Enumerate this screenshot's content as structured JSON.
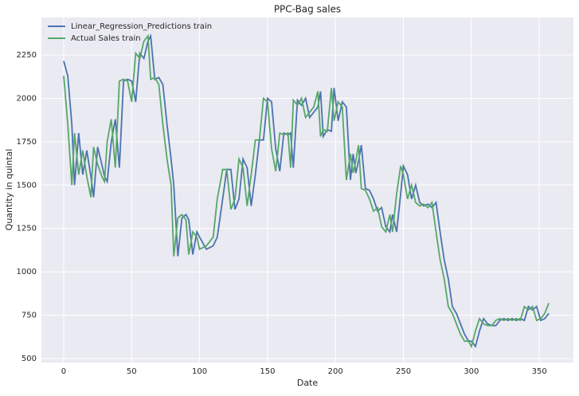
{
  "chart_data": {
    "type": "line",
    "title": "PPC-Bag sales",
    "xlabel": "Date",
    "ylabel": "Quantity in quintal",
    "x": [
      0,
      3,
      6,
      8,
      11,
      14,
      17,
      20,
      22,
      25,
      28,
      30,
      32,
      35,
      38,
      41,
      44,
      47,
      50,
      53,
      56,
      59,
      62,
      64,
      67,
      70,
      73,
      76,
      79,
      81,
      84,
      87,
      90,
      92,
      95,
      98,
      100,
      105,
      110,
      113,
      117,
      120,
      123,
      126,
      129,
      132,
      135,
      138,
      141,
      144,
      147,
      150,
      153,
      156,
      159,
      162,
      165,
      167,
      169,
      172,
      175,
      178,
      181,
      184,
      187,
      189,
      191,
      194,
      197,
      199,
      202,
      205,
      208,
      211,
      213,
      215,
      217,
      219,
      222,
      225,
      228,
      231,
      234,
      237,
      240,
      242,
      245,
      248,
      250,
      253,
      256,
      259,
      262,
      265,
      268,
      271,
      274,
      277,
      280,
      283,
      286,
      289,
      292,
      295,
      298,
      300,
      303,
      306,
      309,
      312,
      315,
      318,
      321,
      324,
      327,
      330,
      333,
      336,
      339,
      342,
      345,
      348,
      351,
      354,
      357
    ],
    "series": [
      {
        "name": "Linear_Regression_Predictions train",
        "color": "#4c72b0",
        "values": [
          2215,
          2130,
          1850,
          1500,
          1800,
          1560,
          1700,
          1550,
          1430,
          1720,
          1620,
          1550,
          1520,
          1750,
          1880,
          1600,
          2100,
          2110,
          2100,
          1980,
          2260,
          2230,
          2330,
          2360,
          2110,
          2120,
          2080,
          1850,
          1650,
          1500,
          1090,
          1310,
          1330,
          1300,
          1100,
          1230,
          1200,
          1130,
          1150,
          1200,
          1420,
          1590,
          1590,
          1360,
          1420,
          1650,
          1600,
          1380,
          1560,
          1760,
          1760,
          2000,
          1980,
          1710,
          1580,
          1800,
          1790,
          1800,
          1600,
          1990,
          1960,
          2000,
          1890,
          1920,
          1950,
          2040,
          1780,
          1820,
          1810,
          2060,
          1870,
          1980,
          1950,
          1530,
          1680,
          1570,
          1640,
          1730,
          1480,
          1470,
          1420,
          1350,
          1370,
          1260,
          1230,
          1330,
          1230,
          1450,
          1610,
          1560,
          1420,
          1500,
          1400,
          1380,
          1390,
          1370,
          1400,
          1230,
          1070,
          960,
          800,
          760,
          700,
          640,
          600,
          600,
          570,
          660,
          730,
          700,
          690,
          690,
          720,
          730,
          720,
          730,
          720,
          730,
          720,
          800,
          780,
          800,
          720,
          730,
          760
        ]
      },
      {
        "name": "Actual Sales train",
        "color": "#55a868",
        "values": [
          2130,
          1850,
          1500,
          1800,
          1560,
          1700,
          1550,
          1430,
          1720,
          1620,
          1550,
          1520,
          1750,
          1880,
          1600,
          2100,
          2110,
          2100,
          1980,
          2260,
          2230,
          2330,
          2360,
          2110,
          2120,
          2080,
          1850,
          1650,
          1500,
          1090,
          1310,
          1330,
          1300,
          1100,
          1230,
          1200,
          1130,
          1150,
          1200,
          1420,
          1590,
          1590,
          1360,
          1420,
          1650,
          1600,
          1380,
          1560,
          1760,
          1760,
          2000,
          1980,
          1710,
          1580,
          1800,
          1790,
          1800,
          1600,
          1990,
          1960,
          2000,
          1890,
          1920,
          1950,
          2040,
          1780,
          1820,
          1810,
          2060,
          1870,
          1980,
          1950,
          1530,
          1680,
          1570,
          1640,
          1730,
          1480,
          1470,
          1420,
          1350,
          1370,
          1260,
          1230,
          1330,
          1230,
          1450,
          1610,
          1560,
          1420,
          1500,
          1400,
          1380,
          1390,
          1370,
          1400,
          1230,
          1070,
          960,
          800,
          760,
          700,
          640,
          600,
          600,
          570,
          660,
          730,
          700,
          690,
          690,
          720,
          730,
          720,
          730,
          720,
          730,
          720,
          800,
          780,
          800,
          720,
          730,
          760,
          820
        ]
      }
    ],
    "xlim": [
      -16.4,
      375.1
    ],
    "ylim": [
      477,
      2466
    ],
    "xticks": [
      0,
      50,
      100,
      150,
      200,
      250,
      300,
      350
    ],
    "yticks": [
      500,
      750,
      1000,
      1250,
      1500,
      1750,
      2000,
      2250
    ],
    "grid": true,
    "legend": "upper left"
  }
}
